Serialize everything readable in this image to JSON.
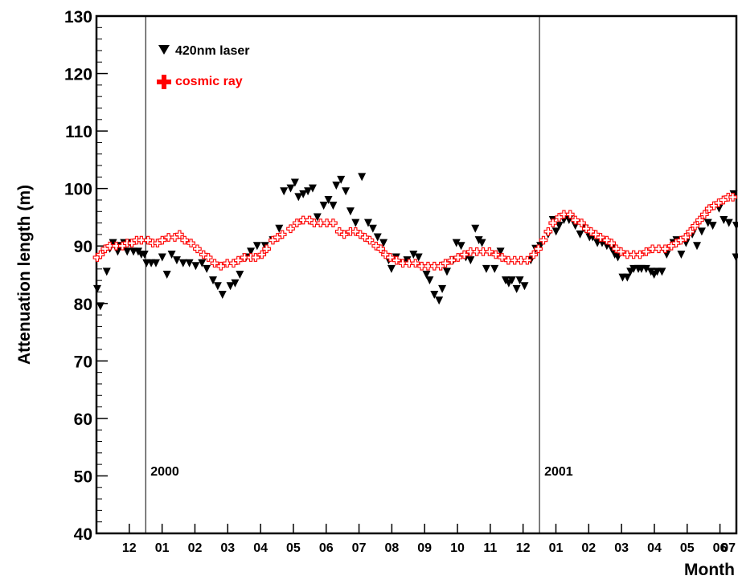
{
  "chart_data": {
    "type": "scatter",
    "title": "",
    "xlabel": "Month",
    "ylabel": "Attenuation length (m)",
    "ylim": [
      40,
      130
    ],
    "xlim": [
      1999.875,
      2001.5
    ],
    "y_ticks": [
      "40",
      "50",
      "60",
      "70",
      "80",
      "90",
      "100",
      "110",
      "120",
      "130"
    ],
    "x_ticks": [
      {
        "x": 1999.9583,
        "label": "12"
      },
      {
        "x": 2000.0417,
        "label": "01"
      },
      {
        "x": 2000.125,
        "label": "02"
      },
      {
        "x": 2000.2083,
        "label": "03"
      },
      {
        "x": 2000.2917,
        "label": "04"
      },
      {
        "x": 2000.375,
        "label": "05"
      },
      {
        "x": 2000.4583,
        "label": "06"
      },
      {
        "x": 2000.5417,
        "label": "07"
      },
      {
        "x": 2000.625,
        "label": "08"
      },
      {
        "x": 2000.7083,
        "label": "09"
      },
      {
        "x": 2000.7917,
        "label": "10"
      },
      {
        "x": 2000.875,
        "label": "11"
      },
      {
        "x": 2000.9583,
        "label": "12"
      },
      {
        "x": 2001.0417,
        "label": "01"
      },
      {
        "x": 2001.125,
        "label": "02"
      },
      {
        "x": 2001.2083,
        "label": "03"
      },
      {
        "x": 2001.2917,
        "label": "04"
      },
      {
        "x": 2001.375,
        "label": "05"
      },
      {
        "x": 2001.4583,
        "label": "06"
      },
      {
        "x": 2001.5,
        "label": "07"
      }
    ],
    "year_markers": [
      {
        "x": 2000.0,
        "label": "2000"
      },
      {
        "x": 2001.0,
        "label": "2001"
      }
    ],
    "legend_position": "top-left",
    "grid": false,
    "series": [
      {
        "name": "420nm laser",
        "marker": "triangle-down",
        "color": "#000000",
        "points": [
          [
            1999.877,
            82.5
          ],
          [
            1999.885,
            79.5
          ],
          [
            1999.901,
            85.5
          ],
          [
            1999.909,
            89.5
          ],
          [
            1999.917,
            90.5
          ],
          [
            1999.929,
            89.0
          ],
          [
            1999.937,
            90.0
          ],
          [
            1999.945,
            90.5
          ],
          [
            1999.953,
            89.0
          ],
          [
            1999.961,
            90.5
          ],
          [
            1999.969,
            89.0
          ],
          [
            1999.981,
            89.0
          ],
          [
            1999.989,
            88.5
          ],
          [
            1999.997,
            88.5
          ],
          [
            2000.002,
            87.0
          ],
          [
            2000.014,
            87.0
          ],
          [
            2000.026,
            87.0
          ],
          [
            2000.042,
            88.0
          ],
          [
            2000.054,
            85.0
          ],
          [
            2000.066,
            88.5
          ],
          [
            2000.079,
            87.5
          ],
          [
            2000.095,
            87.0
          ],
          [
            2000.111,
            87.0
          ],
          [
            2000.127,
            86.5
          ],
          [
            2000.143,
            87.0
          ],
          [
            2000.155,
            86.0
          ],
          [
            2000.171,
            84.0
          ],
          [
            2000.183,
            83.0
          ],
          [
            2000.195,
            81.5
          ],
          [
            2000.215,
            83.0
          ],
          [
            2000.227,
            83.5
          ],
          [
            2000.239,
            85.0
          ],
          [
            2000.255,
            88.0
          ],
          [
            2000.267,
            89.0
          ],
          [
            2000.283,
            90.0
          ],
          [
            2000.303,
            90.0
          ],
          [
            2000.323,
            91.0
          ],
          [
            2000.339,
            93.0
          ],
          [
            2000.351,
            99.5
          ],
          [
            2000.368,
            100.0
          ],
          [
            2000.379,
            101.0
          ],
          [
            2000.388,
            98.5
          ],
          [
            2000.4,
            99.0
          ],
          [
            2000.412,
            99.5
          ],
          [
            2000.424,
            100.0
          ],
          [
            2000.436,
            95.0
          ],
          [
            2000.452,
            97.0
          ],
          [
            2000.464,
            98.0
          ],
          [
            2000.476,
            97.0
          ],
          [
            2000.484,
            100.5
          ],
          [
            2000.496,
            101.5
          ],
          [
            2000.508,
            99.5
          ],
          [
            2000.52,
            96.0
          ],
          [
            2000.533,
            94.0
          ],
          [
            2000.549,
            102.0
          ],
          [
            2000.565,
            94.0
          ],
          [
            2000.577,
            93.0
          ],
          [
            2000.589,
            91.5
          ],
          [
            2000.604,
            90.5
          ],
          [
            2000.617,
            87.5
          ],
          [
            2000.624,
            86.0
          ],
          [
            2000.636,
            88.0
          ],
          [
            2000.652,
            87.0
          ],
          [
            2000.664,
            87.5
          ],
          [
            2000.68,
            88.5
          ],
          [
            2000.693,
            88.0
          ],
          [
            2000.713,
            85.0
          ],
          [
            2000.721,
            84.0
          ],
          [
            2000.733,
            81.5
          ],
          [
            2000.745,
            80.5
          ],
          [
            2000.753,
            82.5
          ],
          [
            2000.765,
            85.5
          ],
          [
            2000.781,
            87.5
          ],
          [
            2000.789,
            90.5
          ],
          [
            2000.801,
            90.0
          ],
          [
            2000.813,
            88.0
          ],
          [
            2000.825,
            87.5
          ],
          [
            2000.837,
            93.0
          ],
          [
            2000.846,
            91.0
          ],
          [
            2000.854,
            90.5
          ],
          [
            2000.865,
            86.0
          ],
          [
            2000.886,
            86.0
          ],
          [
            2000.901,
            89.0
          ],
          [
            2000.914,
            84.0
          ],
          [
            2000.922,
            83.5
          ],
          [
            2000.93,
            84.0
          ],
          [
            2000.942,
            82.5
          ],
          [
            2000.95,
            84.0
          ],
          [
            2000.962,
            83.0
          ],
          [
            2000.978,
            87.5
          ],
          [
            2000.99,
            89.5
          ],
          [
            2001.002,
            90.0
          ],
          [
            2001.022,
            92.0
          ],
          [
            2001.034,
            94.5
          ],
          [
            2001.042,
            92.5
          ],
          [
            2001.05,
            93.5
          ],
          [
            2001.062,
            94.5
          ],
          [
            2001.075,
            94.5
          ],
          [
            2001.091,
            93.5
          ],
          [
            2001.103,
            92.0
          ],
          [
            2001.115,
            93.0
          ],
          [
            2001.127,
            91.5
          ],
          [
            2001.135,
            91.5
          ],
          [
            2001.147,
            90.5
          ],
          [
            2001.159,
            90.5
          ],
          [
            2001.171,
            90.0
          ],
          [
            2001.183,
            89.5
          ],
          [
            2001.191,
            88.5
          ],
          [
            2001.199,
            88.0
          ],
          [
            2001.211,
            84.5
          ],
          [
            2001.223,
            84.5
          ],
          [
            2001.231,
            85.5
          ],
          [
            2001.239,
            86.0
          ],
          [
            2001.251,
            86.0
          ],
          [
            2001.259,
            86.0
          ],
          [
            2001.271,
            86.0
          ],
          [
            2001.283,
            85.5
          ],
          [
            2001.291,
            85.0
          ],
          [
            2001.299,
            85.5
          ],
          [
            2001.311,
            85.5
          ],
          [
            2001.323,
            88.5
          ],
          [
            2001.34,
            90.5
          ],
          [
            2001.348,
            91.0
          ],
          [
            2001.36,
            88.5
          ],
          [
            2001.372,
            90.5
          ],
          [
            2001.388,
            92.0
          ],
          [
            2001.4,
            90.0
          ],
          [
            2001.412,
            92.5
          ],
          [
            2001.428,
            94.0
          ],
          [
            2001.44,
            93.5
          ],
          [
            2001.456,
            96.5
          ],
          [
            2001.468,
            94.5
          ],
          [
            2001.481,
            94.0
          ],
          [
            2001.493,
            99.0
          ],
          [
            2001.499,
            88.0
          ],
          [
            2001.5,
            93.5
          ]
        ]
      },
      {
        "name": "cosmic ray",
        "marker": "cross-open",
        "color": "#ff0000",
        "points": [
          [
            1999.877,
            88.0
          ],
          [
            1999.885,
            88.5
          ],
          [
            1999.897,
            89.5
          ],
          [
            1999.909,
            90.0
          ],
          [
            1999.925,
            90.0
          ],
          [
            1999.941,
            90.0
          ],
          [
            1999.953,
            90.5
          ],
          [
            1999.965,
            90.5
          ],
          [
            1999.977,
            91.0
          ],
          [
            1999.989,
            91.0
          ],
          [
            2000.006,
            91.0
          ],
          [
            2000.018,
            90.5
          ],
          [
            2000.03,
            90.5
          ],
          [
            2000.042,
            91.0
          ],
          [
            2000.058,
            91.5
          ],
          [
            2000.074,
            91.5
          ],
          [
            2000.086,
            92.0
          ],
          [
            2000.099,
            91.0
          ],
          [
            2000.115,
            90.5
          ],
          [
            2000.131,
            89.5
          ],
          [
            2000.147,
            88.5
          ],
          [
            2000.159,
            88.0
          ],
          [
            2000.175,
            87.0
          ],
          [
            2000.191,
            86.5
          ],
          [
            2000.207,
            87.0
          ],
          [
            2000.223,
            87.0
          ],
          [
            2000.235,
            87.5
          ],
          [
            2000.251,
            88.0
          ],
          [
            2000.267,
            88.0
          ],
          [
            2000.279,
            88.0
          ],
          [
            2000.295,
            88.5
          ],
          [
            2000.307,
            89.5
          ],
          [
            2000.323,
            91.0
          ],
          [
            2000.335,
            91.5
          ],
          [
            2000.347,
            92.0
          ],
          [
            2000.368,
            93.0
          ],
          [
            2000.384,
            94.0
          ],
          [
            2000.4,
            94.5
          ],
          [
            2000.416,
            94.5
          ],
          [
            2000.428,
            94.0
          ],
          [
            2000.444,
            94.0
          ],
          [
            2000.46,
            94.0
          ],
          [
            2000.476,
            94.0
          ],
          [
            2000.492,
            92.5
          ],
          [
            2000.504,
            92.0
          ],
          [
            2000.52,
            92.5
          ],
          [
            2000.533,
            92.5
          ],
          [
            2000.545,
            92.0
          ],
          [
            2000.557,
            91.5
          ],
          [
            2000.569,
            91.0
          ],
          [
            2000.585,
            90.0
          ],
          [
            2000.597,
            89.5
          ],
          [
            2000.609,
            88.5
          ],
          [
            2000.621,
            88.0
          ],
          [
            2000.637,
            87.5
          ],
          [
            2000.653,
            87.0
          ],
          [
            2000.669,
            87.0
          ],
          [
            2000.685,
            87.0
          ],
          [
            2000.701,
            86.5
          ],
          [
            2000.717,
            86.5
          ],
          [
            2000.733,
            86.5
          ],
          [
            2000.749,
            86.5
          ],
          [
            2000.761,
            87.0
          ],
          [
            2000.777,
            87.5
          ],
          [
            2000.793,
            88.0
          ],
          [
            2000.809,
            88.5
          ],
          [
            2000.825,
            89.0
          ],
          [
            2000.841,
            89.0
          ],
          [
            2000.857,
            89.0
          ],
          [
            2000.873,
            89.0
          ],
          [
            2000.889,
            88.5
          ],
          [
            2000.905,
            88.0
          ],
          [
            2000.921,
            87.5
          ],
          [
            2000.937,
            87.5
          ],
          [
            2000.953,
            87.5
          ],
          [
            2000.969,
            87.5
          ],
          [
            2000.985,
            88.5
          ],
          [
            2000.997,
            89.5
          ],
          [
            2001.01,
            91.0
          ],
          [
            2001.022,
            92.5
          ],
          [
            2001.034,
            94.0
          ],
          [
            2001.05,
            95.0
          ],
          [
            2001.062,
            95.5
          ],
          [
            2001.078,
            95.5
          ],
          [
            2001.091,
            94.5
          ],
          [
            2001.107,
            94.0
          ],
          [
            2001.119,
            93.0
          ],
          [
            2001.131,
            92.5
          ],
          [
            2001.143,
            92.0
          ],
          [
            2001.155,
            91.5
          ],
          [
            2001.171,
            91.0
          ],
          [
            2001.183,
            90.5
          ],
          [
            2001.195,
            89.5
          ],
          [
            2001.207,
            89.0
          ],
          [
            2001.223,
            88.5
          ],
          [
            2001.239,
            88.5
          ],
          [
            2001.255,
            88.5
          ],
          [
            2001.271,
            89.0
          ],
          [
            2001.287,
            89.5
          ],
          [
            2001.303,
            89.5
          ],
          [
            2001.319,
            89.5
          ],
          [
            2001.335,
            90.0
          ],
          [
            2001.347,
            90.5
          ],
          [
            2001.359,
            91.0
          ],
          [
            2001.371,
            91.5
          ],
          [
            2001.383,
            92.5
          ],
          [
            2001.395,
            93.5
          ],
          [
            2001.407,
            94.5
          ],
          [
            2001.419,
            95.5
          ],
          [
            2001.431,
            96.5
          ],
          [
            2001.443,
            97.0
          ],
          [
            2001.455,
            97.5
          ],
          [
            2001.467,
            98.0
          ],
          [
            2001.479,
            98.5
          ],
          [
            2001.491,
            98.5
          ]
        ]
      }
    ]
  }
}
